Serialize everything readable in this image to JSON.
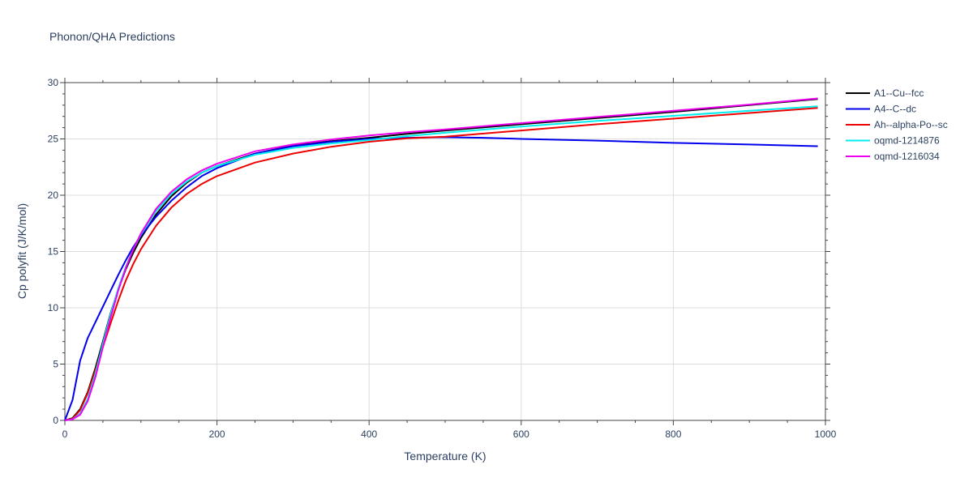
{
  "chart_data": {
    "type": "line",
    "title": "Phonon/QHA Predictions",
    "xlabel": "Temperature (K)",
    "ylabel": "Cp polyfit (J/K/mol)",
    "xlim": [
      0,
      1000
    ],
    "ylim": [
      0,
      30
    ],
    "xticks": [
      0,
      200,
      400,
      600,
      800,
      1000
    ],
    "yticks": [
      0,
      5,
      10,
      15,
      20,
      25,
      30
    ],
    "grid": true,
    "legend_position": "right",
    "series": [
      {
        "name": "A1--Cu--fcc",
        "color": "#000000",
        "x": [
          0,
          10,
          20,
          30,
          40,
          50,
          60,
          70,
          80,
          90,
          100,
          120,
          140,
          160,
          180,
          200,
          250,
          300,
          350,
          400,
          450,
          500,
          600,
          700,
          800,
          900,
          990
        ],
        "y": [
          0,
          0.2,
          1.0,
          2.5,
          4.6,
          7.0,
          9.5,
          11.6,
          13.4,
          14.9,
          16.2,
          18.3,
          19.9,
          21.1,
          22.0,
          22.6,
          23.7,
          24.4,
          24.8,
          25.1,
          25.45,
          25.75,
          26.3,
          26.85,
          27.4,
          28.0,
          28.55
        ]
      },
      {
        "name": "A4--C--dc",
        "color": "#0000ee",
        "x": [
          0,
          10,
          20,
          30,
          40,
          50,
          60,
          70,
          80,
          90,
          100,
          120,
          140,
          160,
          180,
          200,
          250,
          300,
          350,
          400,
          450,
          500,
          550,
          600,
          700,
          800,
          900,
          990
        ],
        "y": [
          0,
          1.8,
          5.3,
          7.3,
          8.7,
          10.1,
          11.5,
          12.9,
          14.2,
          15.4,
          16.4,
          18.1,
          19.5,
          20.7,
          21.7,
          22.4,
          23.7,
          24.35,
          24.75,
          25.0,
          25.1,
          25.15,
          25.1,
          25.0,
          24.85,
          24.65,
          24.5,
          24.35
        ]
      },
      {
        "name": "Ah--alpha-Po--sc",
        "color": "#ee0000",
        "x": [
          0,
          10,
          20,
          30,
          40,
          50,
          60,
          70,
          80,
          90,
          100,
          120,
          140,
          160,
          180,
          200,
          250,
          300,
          350,
          400,
          450,
          500,
          600,
          700,
          800,
          900,
          990
        ],
        "y": [
          0,
          0.15,
          0.9,
          2.4,
          4.4,
          6.5,
          8.6,
          10.6,
          12.4,
          13.9,
          15.2,
          17.3,
          18.9,
          20.1,
          21.0,
          21.7,
          22.9,
          23.7,
          24.3,
          24.75,
          25.05,
          25.2,
          25.75,
          26.3,
          26.8,
          27.3,
          27.75
        ]
      },
      {
        "name": "oqmd-1214876",
        "color": "#00eeee",
        "x": [
          0,
          10,
          20,
          30,
          40,
          50,
          60,
          70,
          80,
          90,
          100,
          120,
          140,
          160,
          180,
          200,
          250,
          300,
          350,
          400,
          450,
          500,
          600,
          700,
          800,
          900,
          990
        ],
        "y": [
          0,
          0.1,
          0.6,
          1.9,
          4.1,
          6.8,
          9.4,
          11.7,
          13.6,
          15.2,
          16.5,
          18.6,
          20.1,
          21.2,
          22.0,
          22.6,
          23.6,
          24.2,
          24.6,
          24.9,
          25.25,
          25.55,
          26.1,
          26.6,
          27.05,
          27.5,
          27.9
        ]
      },
      {
        "name": "oqmd-1216034",
        "color": "#ee00ee",
        "x": [
          0,
          10,
          20,
          30,
          40,
          50,
          60,
          70,
          80,
          90,
          100,
          120,
          140,
          160,
          180,
          200,
          250,
          300,
          350,
          400,
          450,
          500,
          600,
          700,
          800,
          900,
          990
        ],
        "y": [
          0,
          0.1,
          0.5,
          1.7,
          3.8,
          6.5,
          9.1,
          11.5,
          13.5,
          15.2,
          16.6,
          18.8,
          20.3,
          21.4,
          22.2,
          22.8,
          23.9,
          24.5,
          24.95,
          25.3,
          25.6,
          25.85,
          26.4,
          26.95,
          27.5,
          28.05,
          28.6
        ]
      }
    ]
  }
}
